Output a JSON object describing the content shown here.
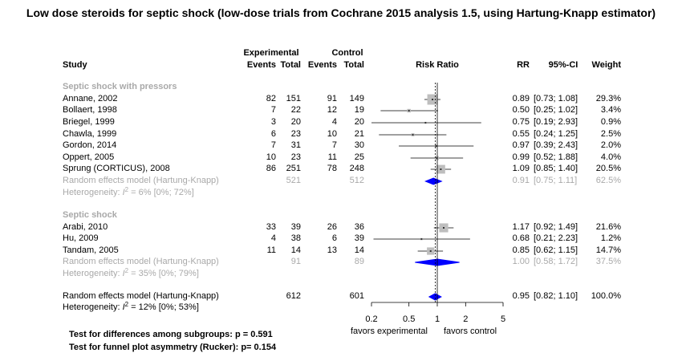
{
  "title": "Low dose steroids for septic shock (low-dose trials from Cochrane 2015 analysis 1.5, using Hartung-Knapp estimator)",
  "chart_data": {
    "type": "forest",
    "title": "Low dose steroids for septic shock (low-dose trials from Cochrane 2015 analysis 1.5, using Hartung-Knapp estimator)",
    "headers": {
      "experimental": "Experimental",
      "control": "Control",
      "study": "Study",
      "events": "Events",
      "total": "Total",
      "effect": "Risk Ratio",
      "rr": "RR",
      "ci": "95%-CI",
      "weight": "Weight"
    },
    "x_axis": {
      "scale": "log",
      "ticks": [
        0.2,
        0.5,
        1,
        2,
        5
      ],
      "tick_labels": [
        "0.2",
        "0.5",
        "1",
        "2",
        "5"
      ],
      "xlim": [
        0.2,
        5
      ],
      "label_left": "favors experimental",
      "label_right": "favors control",
      "reference_line": 1,
      "overall_line": 0.95
    },
    "subgroups": [
      {
        "name": "Septic shock with pressors",
        "studies": [
          {
            "study": "Annane, 2002",
            "e_events": "82",
            "e_total": "151",
            "c_events": "91",
            "c_total": "149",
            "rr": 0.89,
            "lower": 0.73,
            "upper": 1.08,
            "rr_text": "0.89",
            "ci_text": "[0.73; 1.08]",
            "weight_text": "29.3%",
            "weight": 29.3
          },
          {
            "study": "Bollaert, 1998",
            "e_events": "7",
            "e_total": "22",
            "c_events": "12",
            "c_total": "19",
            "rr": 0.5,
            "lower": 0.25,
            "upper": 1.02,
            "rr_text": "0.50",
            "ci_text": "[0.25; 1.02]",
            "weight_text": "3.4%",
            "weight": 3.4
          },
          {
            "study": "Briegel, 1999",
            "e_events": "3",
            "e_total": "20",
            "c_events": "4",
            "c_total": "20",
            "rr": 0.75,
            "lower": 0.19,
            "upper": 2.93,
            "rr_text": "0.75",
            "ci_text": "[0.19; 2.93]",
            "weight_text": "0.9%",
            "weight": 0.9
          },
          {
            "study": "Chawla, 1999",
            "e_events": "6",
            "e_total": "23",
            "c_events": "10",
            "c_total": "21",
            "rr": 0.55,
            "lower": 0.24,
            "upper": 1.25,
            "rr_text": "0.55",
            "ci_text": "[0.24; 1.25]",
            "weight_text": "2.5%",
            "weight": 2.5
          },
          {
            "study": "Gordon, 2014",
            "e_events": "7",
            "e_total": "31",
            "c_events": "7",
            "c_total": "30",
            "rr": 0.97,
            "lower": 0.39,
            "upper": 2.43,
            "rr_text": "0.97",
            "ci_text": "[0.39; 2.43]",
            "weight_text": "2.0%",
            "weight": 2.0
          },
          {
            "study": "Oppert, 2005",
            "e_events": "10",
            "e_total": "23",
            "c_events": "11",
            "c_total": "25",
            "rr": 0.99,
            "lower": 0.52,
            "upper": 1.88,
            "rr_text": "0.99",
            "ci_text": "[0.52; 1.88]",
            "weight_text": "4.0%",
            "weight": 4.0
          },
          {
            "study": "Sprung (CORTICUS), 2008",
            "e_events": "86",
            "e_total": "251",
            "c_events": "78",
            "c_total": "248",
            "rr": 1.09,
            "lower": 0.85,
            "upper": 1.4,
            "rr_text": "1.09",
            "ci_text": "[0.85; 1.40]",
            "weight_text": "20.5%",
            "weight": 20.5
          }
        ],
        "pooled": {
          "label": "Random effects model  (Hartung-Knapp)",
          "e_total": "521",
          "c_total": "512",
          "rr": 0.91,
          "lower": 0.75,
          "upper": 1.11,
          "rr_text": "0.91",
          "ci_text": "[0.75; 1.11]",
          "weight_text": "62.5%"
        },
        "heterogeneity": {
          "prefix": "Heterogeneity: ",
          "i2_label": "I",
          "i2_sup": "2",
          "value": " = 6% [0%; 72%]"
        }
      },
      {
        "name": "Septic shock",
        "studies": [
          {
            "study": "Arabi, 2010",
            "e_events": "33",
            "e_total": "39",
            "c_events": "26",
            "c_total": "36",
            "rr": 1.17,
            "lower": 0.92,
            "upper": 1.49,
            "rr_text": "1.17",
            "ci_text": "[0.92; 1.49]",
            "weight_text": "21.6%",
            "weight": 21.6
          },
          {
            "study": "Hu, 2009",
            "e_events": "4",
            "e_total": "38",
            "c_events": "6",
            "c_total": "39",
            "rr": 0.68,
            "lower": 0.21,
            "upper": 2.23,
            "rr_text": "0.68",
            "ci_text": "[0.21; 2.23]",
            "weight_text": "1.2%",
            "weight": 1.2
          },
          {
            "study": "Tandam, 2005",
            "e_events": "11",
            "e_total": "14",
            "c_events": "13",
            "c_total": "14",
            "rr": 0.85,
            "lower": 0.62,
            "upper": 1.15,
            "rr_text": "0.85",
            "ci_text": "[0.62; 1.15]",
            "weight_text": "14.7%",
            "weight": 14.7
          }
        ],
        "pooled": {
          "label": "Random effects model  (Hartung-Knapp)",
          "e_total": "91",
          "c_total": "89",
          "rr": 1.0,
          "lower": 0.58,
          "upper": 1.72,
          "rr_text": "1.00",
          "ci_text": "[0.58; 1.72]",
          "weight_text": "37.5%"
        },
        "heterogeneity": {
          "prefix": "Heterogeneity: ",
          "i2_label": "I",
          "i2_sup": "2",
          "value": " = 35% [0%; 79%]"
        }
      }
    ],
    "overall": {
      "label": "Random effects model  (Hartung-Knapp)",
      "e_total": "612",
      "c_total": "601",
      "rr": 0.95,
      "lower": 0.82,
      "upper": 1.1,
      "rr_text": "0.95",
      "ci_text": "[0.82; 1.10]",
      "weight_text": "100.0%",
      "heterogeneity": {
        "prefix": "Heterogeneity: ",
        "i2_label": "I",
        "i2_sup": "2",
        "value": " = 12% [0%; 53%]"
      }
    },
    "tests": [
      "Test for differences among subgroups: p = 0.591",
      "Test for funnel plot asymmetry (Rucker): p= 0.154"
    ],
    "colors": {
      "text": "#000000",
      "pooled_subgroup_text": "#a9a9a9",
      "square": "#bebebe",
      "diamond": "#0000ff",
      "line": "#000000"
    }
  }
}
